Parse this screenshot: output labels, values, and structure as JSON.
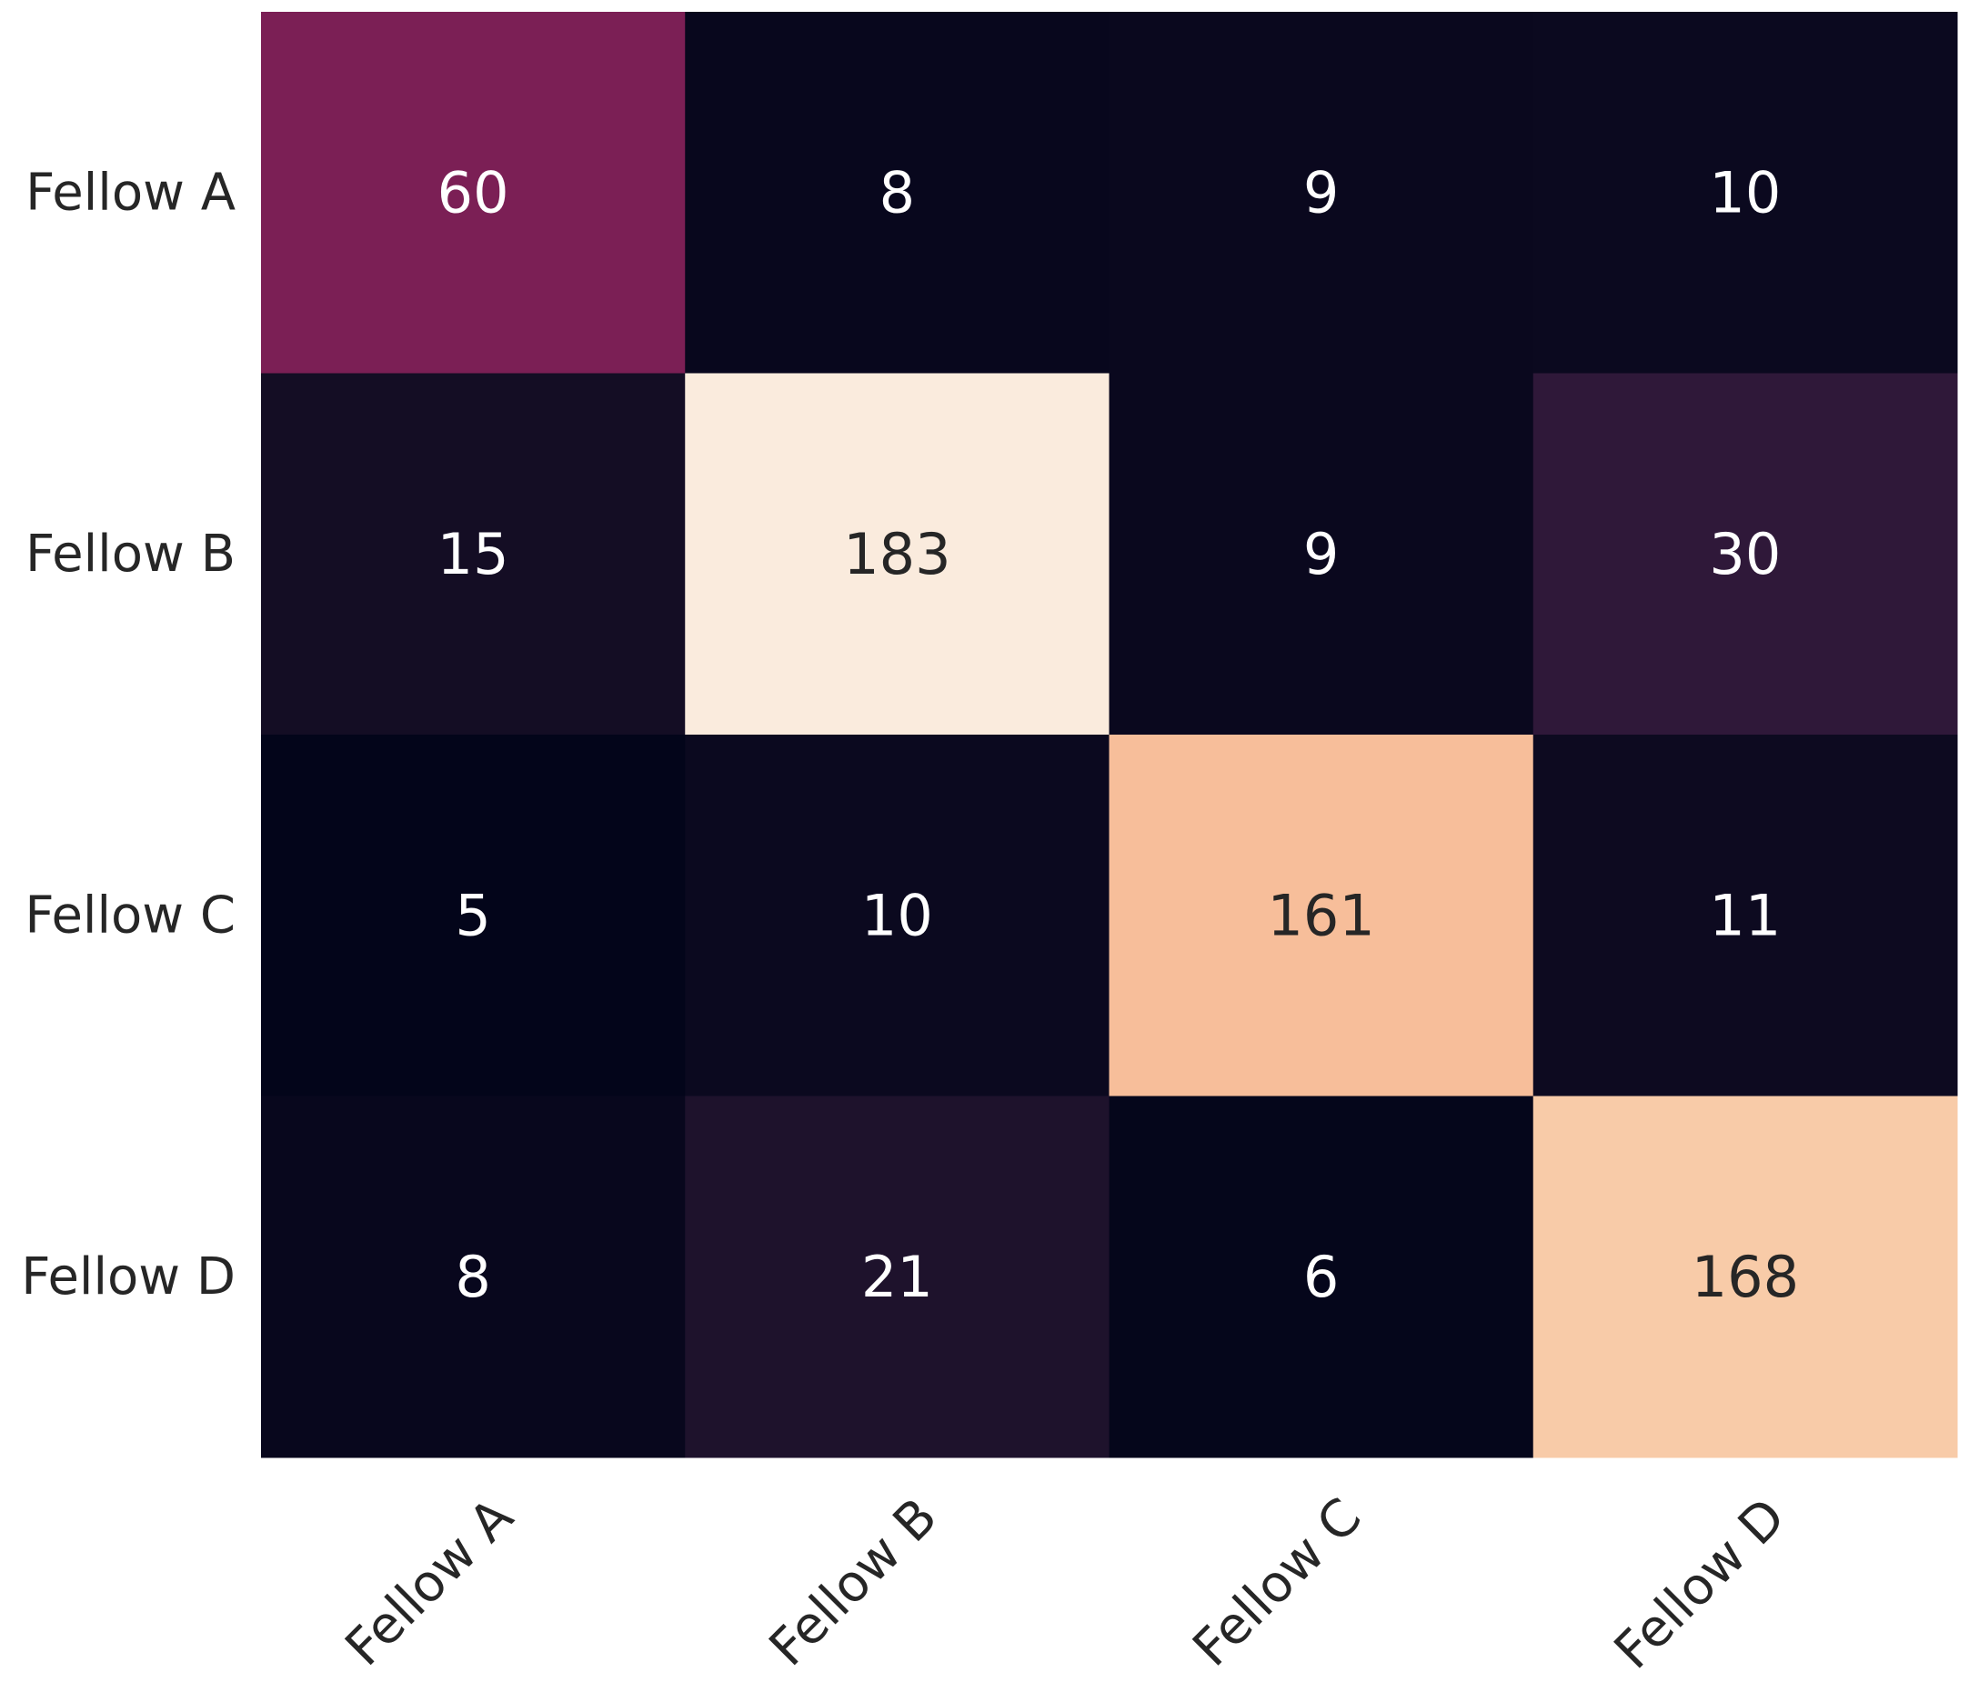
{
  "chart_data": {
    "type": "heatmap",
    "title": "",
    "xlabel": "",
    "ylabel": "",
    "rows": [
      "Fellow A",
      "Fellow B",
      "Fellow C",
      "Fellow D"
    ],
    "columns": [
      "Fellow A",
      "Fellow B",
      "Fellow C",
      "Fellow D"
    ],
    "values": [
      [
        60,
        8,
        9,
        10
      ],
      [
        15,
        183,
        9,
        30
      ],
      [
        5,
        10,
        161,
        11
      ],
      [
        8,
        21,
        6,
        168
      ]
    ],
    "value_range": [
      5,
      183
    ],
    "colorbar": false,
    "grid": false,
    "annotations": true,
    "colormap": "rocket",
    "colormap_stops": [
      "#03051a",
      "#1a1028",
      "#341a3d",
      "#4c1d4b",
      "#7a1f55",
      "#a11a5b",
      "#cb1b4f",
      "#e83f3f",
      "#f06043",
      "#f37651",
      "#f59b75",
      "#f6b48f",
      "#f8cdab",
      "#faebdd"
    ],
    "annotation_colors": {
      "light": "#ffffff",
      "dark": "#262626"
    }
  }
}
